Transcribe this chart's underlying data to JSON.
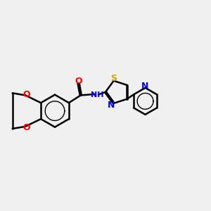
{
  "bg_color": "#f0f0f0",
  "bond_color": "#000000",
  "bond_width": 1.8,
  "atom_colors": {
    "O": "#ff0000",
    "N": "#0000ff",
    "S": "#ccaa00",
    "H": "#000000",
    "C": "#000000"
  },
  "font_size": 9,
  "figsize": [
    3.0,
    3.0
  ],
  "dpi": 100
}
